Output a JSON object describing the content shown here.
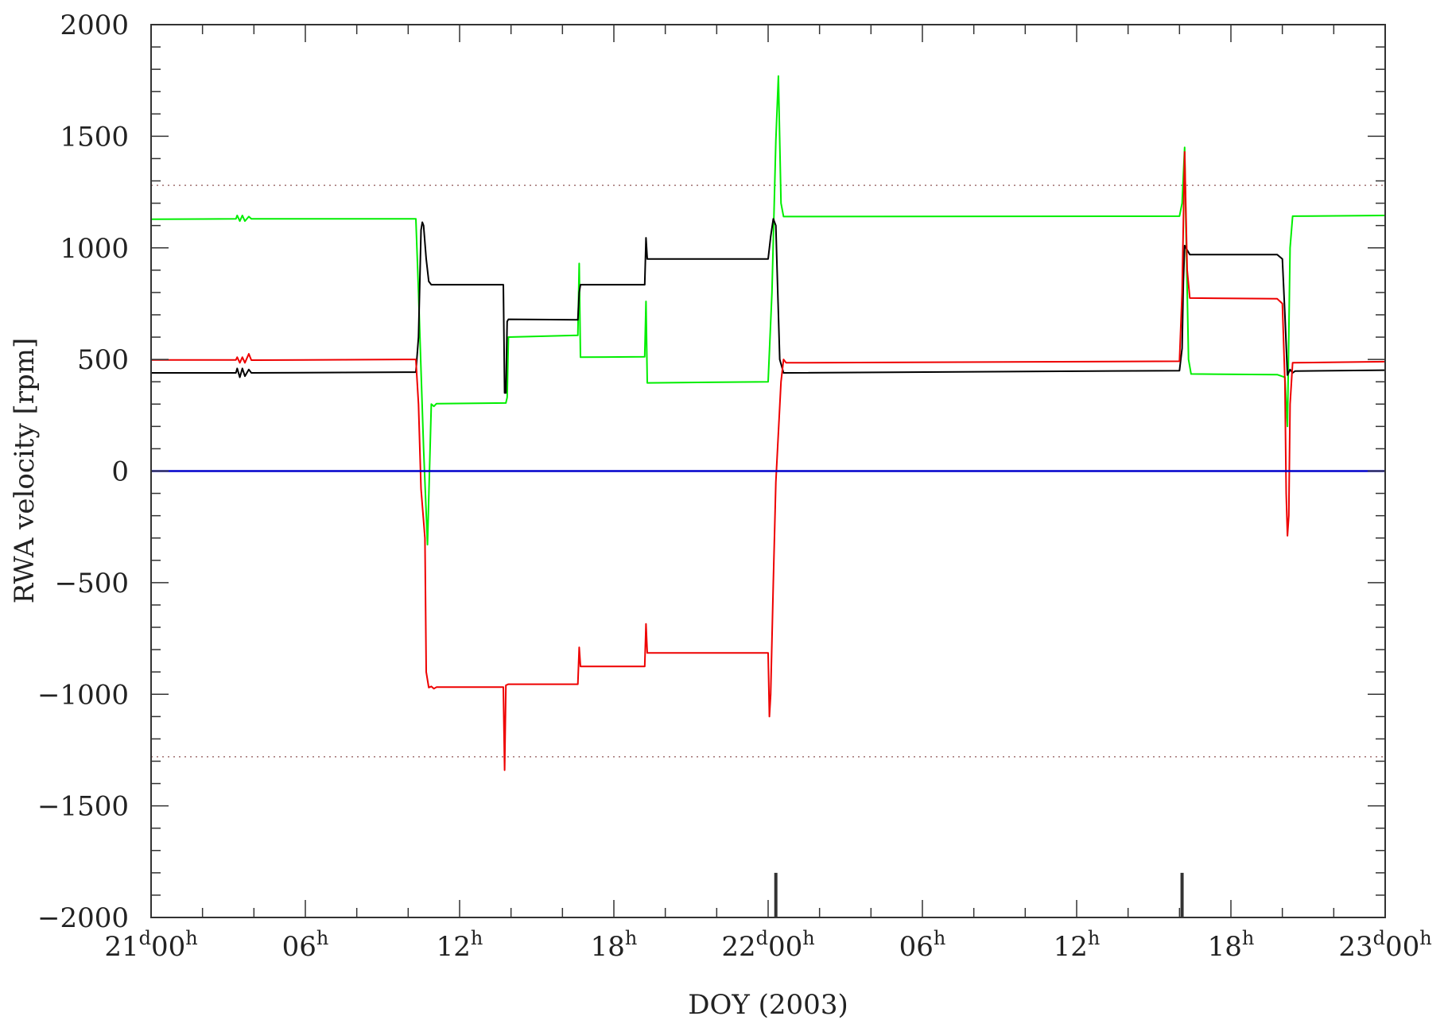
{
  "chart_data": {
    "type": "line",
    "title": "",
    "xlabel": "DOY (2003)",
    "ylabel": "RWA velocity [rpm]",
    "x_unit": "hours since DOY 21 00h",
    "xlim": [
      0,
      48
    ],
    "ylim": [
      -2000,
      2000
    ],
    "y_ticks": [
      2000,
      1500,
      1000,
      500,
      0,
      -500,
      -1000,
      -1500,
      -2000
    ],
    "y_tick_labels": [
      "2000",
      "1500",
      "1000",
      "500",
      "0",
      "−500",
      "−1000",
      "−1500",
      "−2000"
    ],
    "x_ticks": [
      {
        "x": 0,
        "day": "21",
        "hour": "00"
      },
      {
        "x": 6,
        "day": "",
        "hour": "06"
      },
      {
        "x": 12,
        "day": "",
        "hour": "12"
      },
      {
        "x": 18,
        "day": "",
        "hour": "18"
      },
      {
        "x": 24,
        "day": "22",
        "hour": "00"
      },
      {
        "x": 30,
        "day": "",
        "hour": "06"
      },
      {
        "x": 36,
        "day": "",
        "hour": "12"
      },
      {
        "x": 42,
        "day": "",
        "hour": "18"
      },
      {
        "x": 48,
        "day": "23",
        "hour": "00"
      }
    ],
    "tick_suffix_day": "d",
    "tick_suffix_hour": "h",
    "grid": false,
    "limit_lines": {
      "values": [
        1280,
        -1280
      ],
      "color": "#a07070",
      "style": "dotted"
    },
    "event_markers": {
      "x": [
        24.3,
        40.1
      ],
      "y_from": -2000,
      "y_to": -1800,
      "color": "#333333"
    },
    "series": [
      {
        "color": "#00ee00",
        "points": [
          [
            0,
            1128
          ],
          [
            3.3,
            1130
          ],
          [
            3.35,
            1145
          ],
          [
            3.45,
            1120
          ],
          [
            3.55,
            1145
          ],
          [
            3.65,
            1120
          ],
          [
            3.8,
            1140
          ],
          [
            3.9,
            1130
          ],
          [
            10.3,
            1130
          ],
          [
            10.4,
            800
          ],
          [
            10.6,
            100
          ],
          [
            10.75,
            -330
          ],
          [
            10.9,
            300
          ],
          [
            11.0,
            290
          ],
          [
            11.1,
            302
          ],
          [
            13.8,
            305
          ],
          [
            13.85,
            330
          ],
          [
            13.9,
            600
          ],
          [
            16.6,
            608
          ],
          [
            16.65,
            930
          ],
          [
            16.7,
            510
          ],
          [
            19.2,
            512
          ],
          [
            19.25,
            760
          ],
          [
            19.3,
            395
          ],
          [
            24.0,
            400
          ],
          [
            24.15,
            800
          ],
          [
            24.3,
            1480
          ],
          [
            24.4,
            1770
          ],
          [
            24.5,
            1200
          ],
          [
            24.6,
            1140
          ],
          [
            24.8,
            1140
          ],
          [
            40.0,
            1142
          ],
          [
            40.1,
            1200
          ],
          [
            40.2,
            1450
          ],
          [
            40.25,
            1100
          ],
          [
            40.35,
            500
          ],
          [
            40.45,
            435
          ],
          [
            43.8,
            432
          ],
          [
            44.1,
            420
          ],
          [
            44.2,
            200
          ],
          [
            44.3,
            1000
          ],
          [
            44.4,
            1142
          ],
          [
            48,
            1145
          ]
        ]
      },
      {
        "color": "#000000",
        "points": [
          [
            0,
            440
          ],
          [
            3.3,
            440
          ],
          [
            3.35,
            460
          ],
          [
            3.45,
            420
          ],
          [
            3.55,
            460
          ],
          [
            3.65,
            425
          ],
          [
            3.8,
            455
          ],
          [
            3.9,
            440
          ],
          [
            10.3,
            443
          ],
          [
            10.4,
            600
          ],
          [
            10.5,
            1080
          ],
          [
            10.55,
            1115
          ],
          [
            10.6,
            1100
          ],
          [
            10.7,
            950
          ],
          [
            10.8,
            850
          ],
          [
            10.9,
            835
          ],
          [
            13.7,
            835
          ],
          [
            13.75,
            350
          ],
          [
            13.8,
            350
          ],
          [
            13.85,
            670
          ],
          [
            13.9,
            680
          ],
          [
            16.6,
            678
          ],
          [
            16.65,
            800
          ],
          [
            16.7,
            835
          ],
          [
            19.2,
            835
          ],
          [
            19.25,
            1045
          ],
          [
            19.3,
            950
          ],
          [
            24.0,
            950
          ],
          [
            24.1,
            1050
          ],
          [
            24.2,
            1130
          ],
          [
            24.3,
            1100
          ],
          [
            24.35,
            900
          ],
          [
            24.45,
            500
          ],
          [
            24.6,
            440
          ],
          [
            40.0,
            450
          ],
          [
            40.1,
            550
          ],
          [
            40.15,
            850
          ],
          [
            40.2,
            1010
          ],
          [
            40.4,
            970
          ],
          [
            43.8,
            970
          ],
          [
            44.0,
            950
          ],
          [
            44.1,
            700
          ],
          [
            44.2,
            430
          ],
          [
            44.3,
            455
          ],
          [
            44.4,
            440
          ],
          [
            44.5,
            448
          ],
          [
            48,
            452
          ]
        ]
      },
      {
        "color": "#ee0000",
        "points": [
          [
            0,
            498
          ],
          [
            3.3,
            498
          ],
          [
            3.35,
            510
          ],
          [
            3.45,
            485
          ],
          [
            3.55,
            510
          ],
          [
            3.65,
            485
          ],
          [
            3.8,
            525
          ],
          [
            3.9,
            497
          ],
          [
            10.3,
            500
          ],
          [
            10.4,
            300
          ],
          [
            10.5,
            -80
          ],
          [
            10.65,
            -300
          ],
          [
            10.7,
            -900
          ],
          [
            10.8,
            -970
          ],
          [
            10.9,
            -965
          ],
          [
            11.0,
            -975
          ],
          [
            11.1,
            -968
          ],
          [
            13.7,
            -968
          ],
          [
            13.75,
            -1340
          ],
          [
            13.8,
            -960
          ],
          [
            13.9,
            -955
          ],
          [
            16.6,
            -955
          ],
          [
            16.65,
            -790
          ],
          [
            16.7,
            -875
          ],
          [
            19.2,
            -875
          ],
          [
            19.25,
            -685
          ],
          [
            19.3,
            -815
          ],
          [
            24.0,
            -815
          ],
          [
            24.05,
            -1100
          ],
          [
            24.1,
            -1000
          ],
          [
            24.2,
            -500
          ],
          [
            24.3,
            -50
          ],
          [
            24.5,
            400
          ],
          [
            24.6,
            500
          ],
          [
            24.7,
            485
          ],
          [
            40.0,
            492
          ],
          [
            40.1,
            800
          ],
          [
            40.2,
            1430
          ],
          [
            40.3,
            900
          ],
          [
            40.4,
            775
          ],
          [
            43.8,
            772
          ],
          [
            44.0,
            750
          ],
          [
            44.1,
            400
          ],
          [
            44.15,
            -100
          ],
          [
            44.2,
            -290
          ],
          [
            44.25,
            -200
          ],
          [
            44.3,
            300
          ],
          [
            44.4,
            485
          ],
          [
            48,
            490
          ]
        ]
      },
      {
        "color": "#0000cc",
        "points": [
          [
            0,
            0
          ],
          [
            48,
            0
          ]
        ]
      }
    ]
  }
}
